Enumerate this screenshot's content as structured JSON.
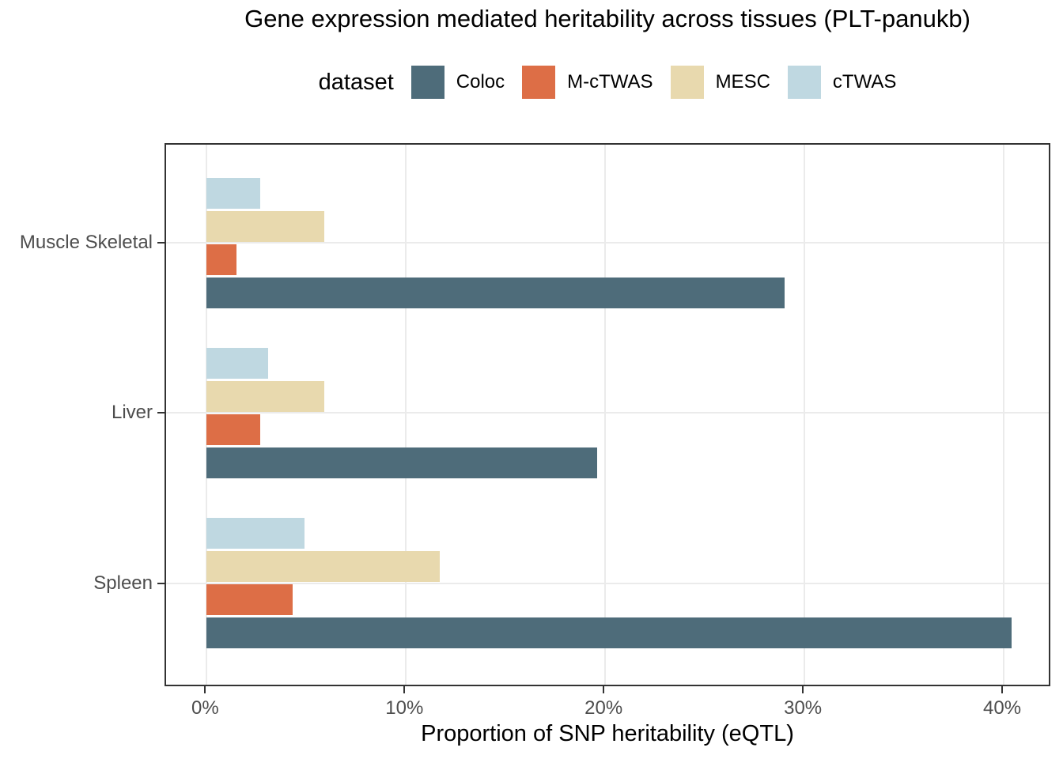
{
  "chart_data": {
    "type": "bar",
    "orientation": "horizontal",
    "title": "Gene expression mediated heritability across tissues (PLT-panukb)",
    "xlabel": "Proportion of SNP heritability (eQTL)",
    "legend_title": "dataset",
    "legend_position": "top",
    "grid": "major only, light gray on white panel with dark border",
    "categories": [
      "Muscle Skeletal",
      "Liver",
      "Spleen"
    ],
    "series": [
      {
        "name": "Coloc",
        "color": "#4E6C7A",
        "values": [
          29.0,
          19.6,
          40.4
        ]
      },
      {
        "name": "M-cTWAS",
        "color": "#DD6E46",
        "values": [
          1.5,
          2.7,
          4.3
        ]
      },
      {
        "name": "MESC",
        "color": "#E8D9AE",
        "values": [
          5.9,
          5.9,
          11.7
        ]
      },
      {
        "name": "cTWAS",
        "color": "#BFD8E1",
        "values": [
          2.7,
          3.1,
          4.9
        ]
      }
    ],
    "bar_order_top_to_bottom": [
      "cTWAS",
      "MESC",
      "M-cTWAS",
      "Coloc"
    ],
    "x_ticks": [
      {
        "value": 0,
        "label": "0%"
      },
      {
        "value": 10,
        "label": "10%"
      },
      {
        "value": 20,
        "label": "20%"
      },
      {
        "value": 30,
        "label": "30%"
      },
      {
        "value": 40,
        "label": "40%"
      }
    ],
    "xlim": [
      -2.04,
      42.42
    ]
  }
}
